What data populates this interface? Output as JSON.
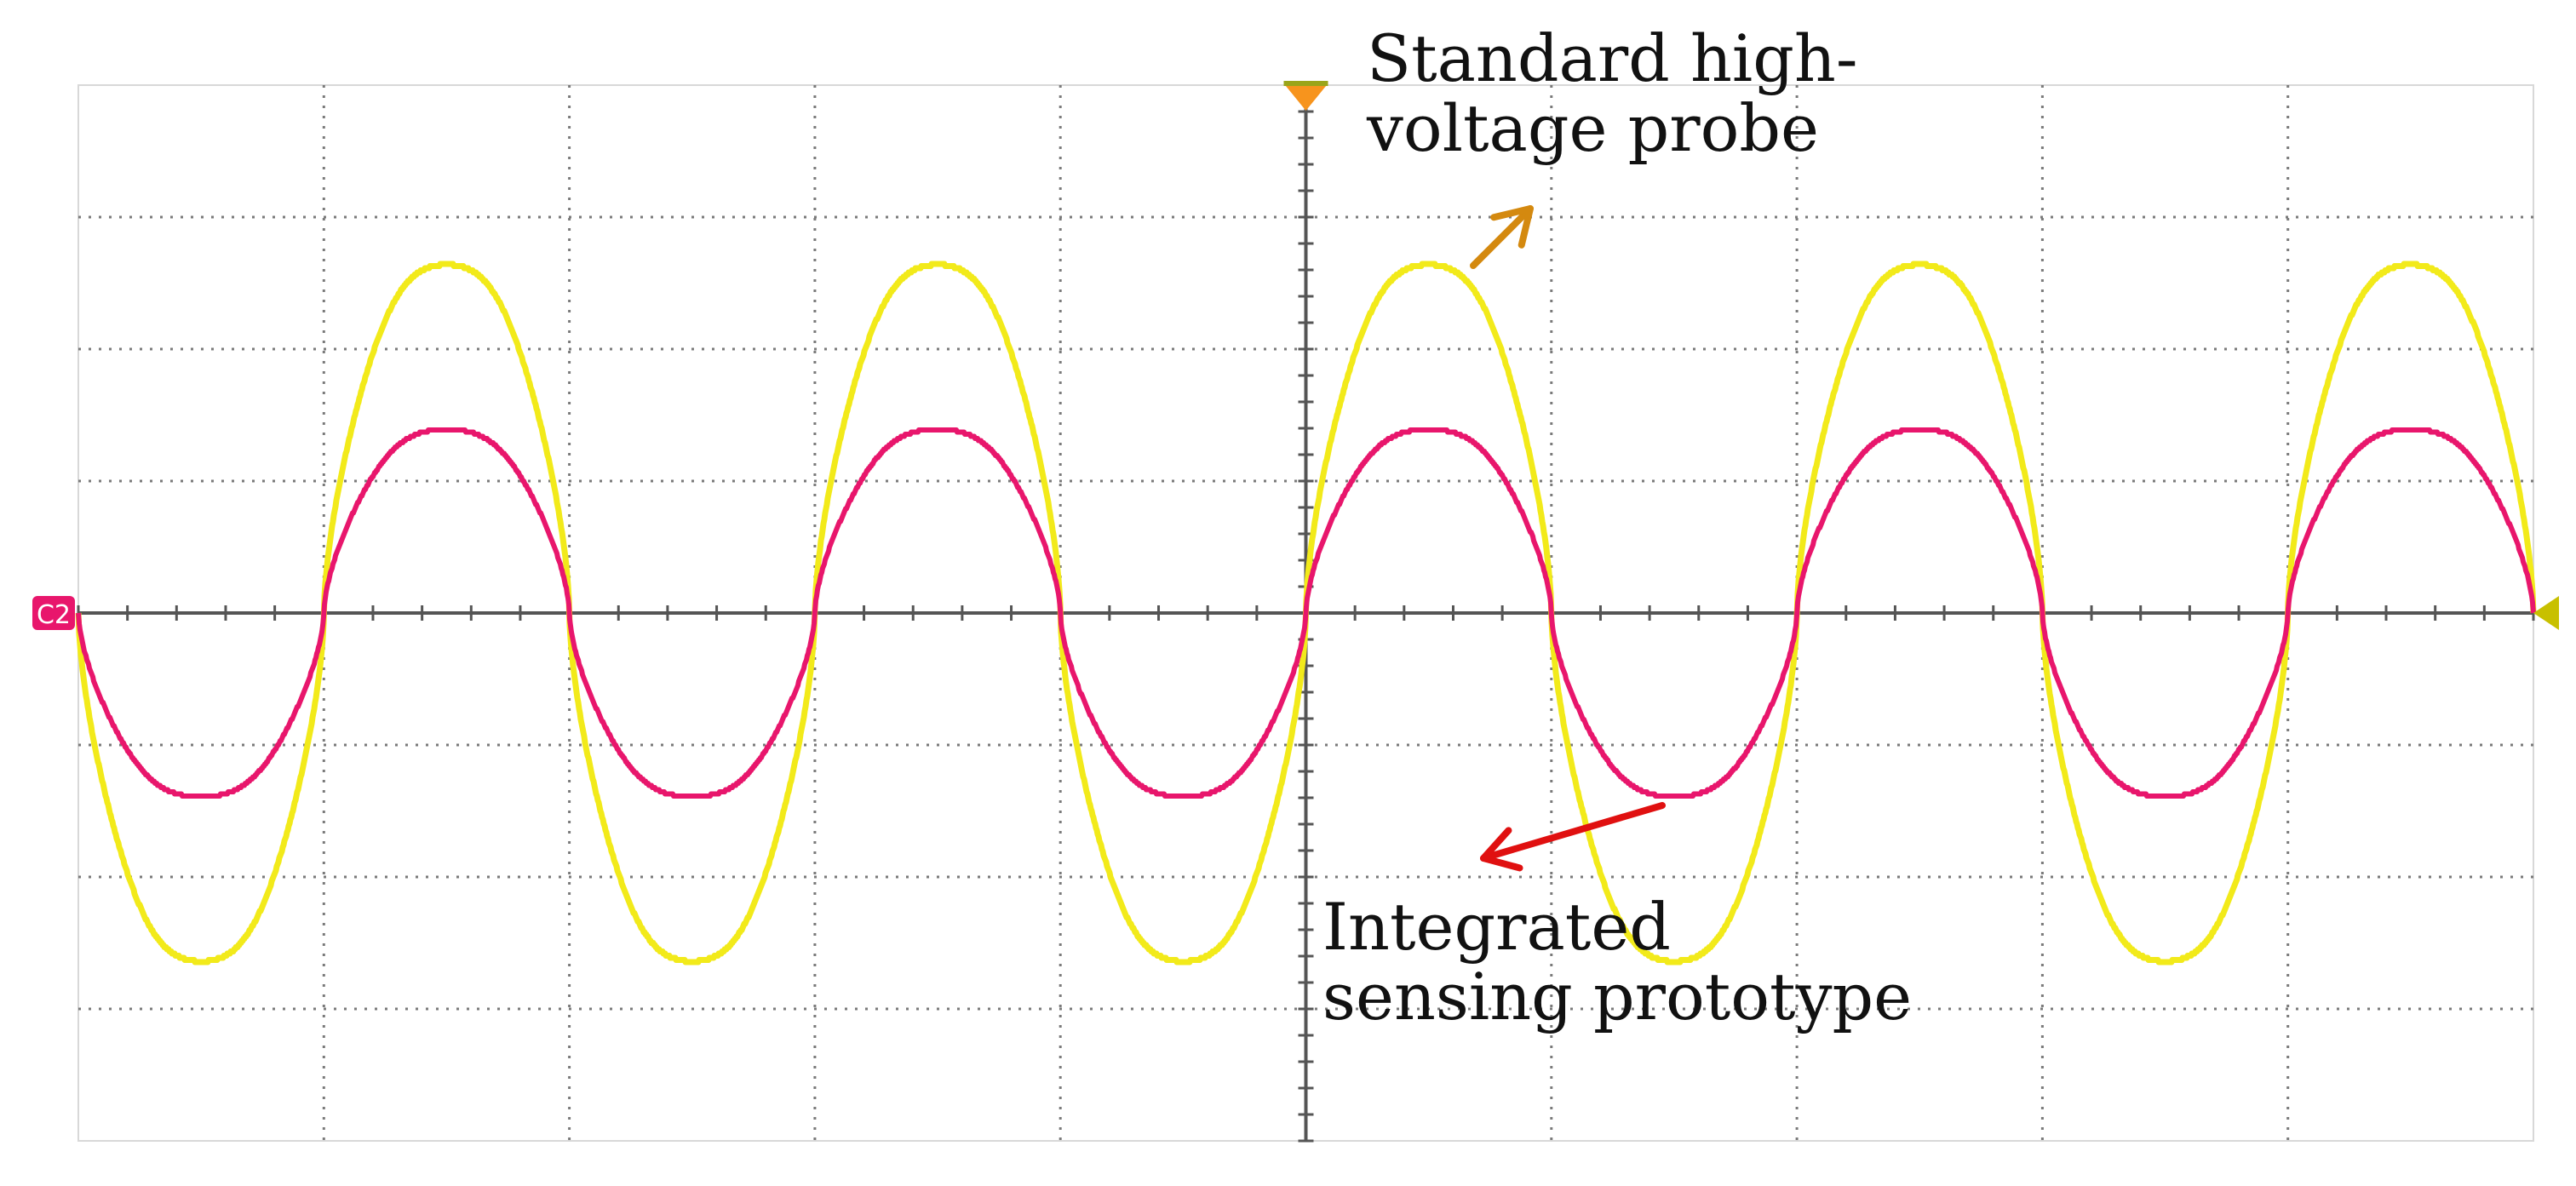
{
  "channel_marker": "C2",
  "annotations": {
    "hv_probe": {
      "text": "Standard high-\nvoltage probe",
      "arrow_color": "#d4890f"
    },
    "prototype": {
      "text": "Integrated\nsensing prototype",
      "arrow_color": "#e01010"
    }
  },
  "colors": {
    "background": "#ffffff",
    "grid": "#7a7a7a",
    "axis": "#555555",
    "channel_marker": "#e8166c",
    "trigger_marker": "#f7941d",
    "right_marker": "#c8c000"
  },
  "chart_data": {
    "type": "line",
    "x_divisions": 10,
    "y_divisions": 8,
    "xlim": [
      0,
      10
    ],
    "ylim": [
      -4,
      4
    ],
    "grid": true,
    "period_div": 2.0,
    "series": [
      {
        "color": "#f2ea1a",
        "amplitude_div": 2.75,
        "phase": 0,
        "shape": "flattened-sine"
      },
      {
        "color": "#e8166c",
        "amplitude_div": 1.45,
        "phase": 0,
        "shape": "flattened-sine"
      }
    ]
  }
}
